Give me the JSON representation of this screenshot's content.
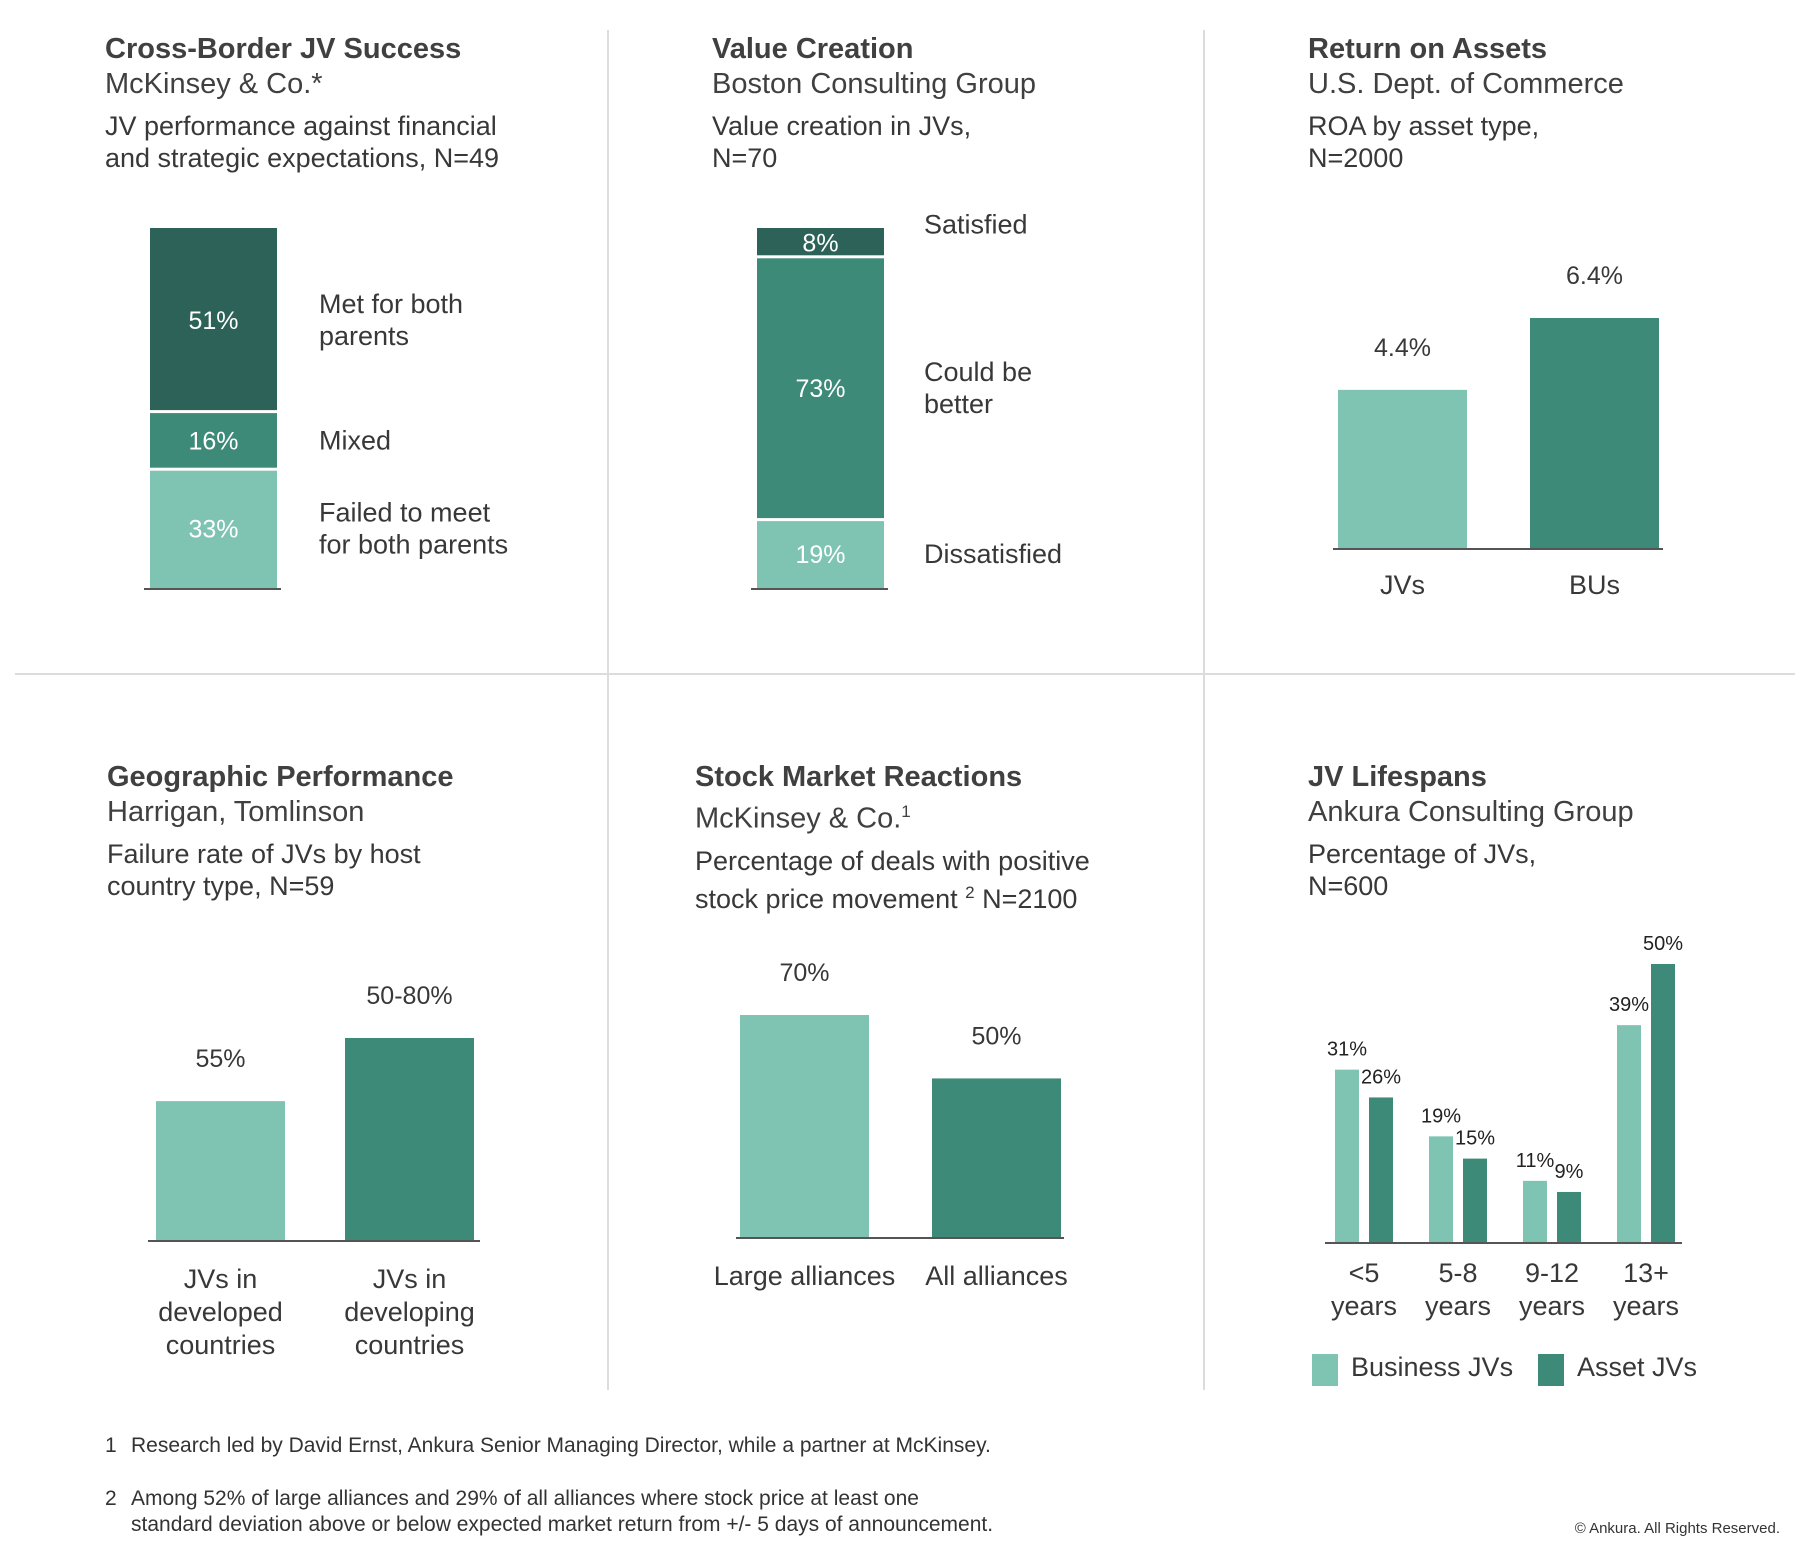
{
  "colors": {
    "light": "#7fc4b3",
    "mid": "#3d8a78",
    "dark": "#2c6257",
    "axis": "#555555"
  },
  "panels": {
    "cross_border": {
      "title": "Cross-Border JV Success",
      "source": "McKinsey & Co.*",
      "desc_lines": [
        "JV performance against financial",
        "and strategic expectations, N=49"
      ]
    },
    "value_creation": {
      "title": "Value Creation",
      "source": "Boston Consulting Group",
      "desc_lines": [
        "Value creation in JVs,",
        "N=70"
      ]
    },
    "roa": {
      "title": "Return on Assets",
      "source": "U.S. Dept. of Commerce",
      "desc_lines": [
        "ROA by asset type,",
        "N=2000"
      ]
    },
    "geographic": {
      "title": "Geographic Performance",
      "source": "Harrigan, Tomlinson",
      "desc_lines": [
        "Failure rate of JVs by host",
        "country type, N=59"
      ]
    },
    "stock_market": {
      "title": "Stock Market Reactions",
      "source": "McKinsey & Co.",
      "source_sup": "1",
      "desc_line1": "Percentage of deals with positive",
      "desc_line2_a": "stock price movement ",
      "desc_line2_sup": "2",
      "desc_line2_b": " N=2100"
    },
    "lifespans": {
      "title": "JV Lifespans",
      "source": "Ankura Consulting Group",
      "desc_lines": [
        "Percentage of JVs,",
        "N=600"
      ]
    }
  },
  "chart_data": [
    {
      "id": "cross_border",
      "type": "bar",
      "stacked": true,
      "segments": [
        {
          "value": 33,
          "label": "33%",
          "category_lines": [
            "Failed to meet",
            "for both parents"
          ],
          "color": "#7fc4b3"
        },
        {
          "value": 16,
          "label": "16%",
          "category_lines": [
            "Mixed"
          ],
          "color": "#3d8a78"
        },
        {
          "value": 51,
          "label": "51%",
          "category_lines": [
            "Met for both",
            "parents"
          ],
          "color": "#2c6257"
        }
      ]
    },
    {
      "id": "value_creation",
      "type": "bar",
      "stacked": true,
      "segments": [
        {
          "value": 19,
          "label": "19%",
          "category_lines": [
            "Dissatisfied"
          ],
          "color": "#7fc4b3"
        },
        {
          "value": 73,
          "label": "73%",
          "category_lines": [
            "Could be",
            "better"
          ],
          "color": "#3d8a78"
        },
        {
          "value": 8,
          "label": "8%",
          "category_lines": [
            "Satisfied"
          ],
          "color": "#2c6257"
        }
      ]
    },
    {
      "id": "roa",
      "type": "bar",
      "ylim": [
        0,
        6.4
      ],
      "bars": [
        {
          "value": 4.4,
          "label": "4.4%",
          "category_lines": [
            "JVs"
          ],
          "color": "#7fc4b3"
        },
        {
          "value": 6.4,
          "label": "6.4%",
          "category_lines": [
            "BUs"
          ],
          "color": "#3d8a78"
        }
      ]
    },
    {
      "id": "geographic",
      "type": "bar",
      "ylim": [
        0,
        80
      ],
      "bars": [
        {
          "value": 55,
          "label": "55%",
          "category_lines": [
            "JVs in",
            "developed",
            "countries"
          ],
          "color": "#7fc4b3"
        },
        {
          "value": 80,
          "label": "50-80%",
          "category_lines": [
            "JVs in",
            "developing",
            "countries"
          ],
          "color": "#3d8a78"
        }
      ]
    },
    {
      "id": "stock_market",
      "type": "bar",
      "ylim": [
        0,
        70
      ],
      "bars": [
        {
          "value": 70,
          "label": "70%",
          "category_lines": [
            "Large alliances"
          ],
          "color": "#7fc4b3"
        },
        {
          "value": 50,
          "label": "50%",
          "category_lines": [
            "All alliances"
          ],
          "color": "#3d8a78"
        }
      ]
    },
    {
      "id": "lifespans",
      "type": "bar",
      "ylim": [
        0,
        50
      ],
      "categories": [
        [
          "<5",
          "years"
        ],
        [
          "5-8",
          "years"
        ],
        [
          "9-12",
          "years"
        ],
        [
          "13+",
          "years"
        ]
      ],
      "series": [
        {
          "name": "Business JVs",
          "values": [
            31,
            19,
            11,
            39
          ],
          "color": "#7fc4b3"
        },
        {
          "name": "Asset JVs",
          "values": [
            26,
            15,
            9,
            50
          ],
          "color": "#3d8a78"
        }
      ],
      "legend": "bottom"
    }
  ],
  "footnotes": [
    {
      "num": "1",
      "lines": [
        "Research led by David Ernst, Ankura Senior Managing Director, while a partner at McKinsey."
      ]
    },
    {
      "num": "2",
      "lines": [
        "Among 52% of large alliances and 29% of all alliances where stock price at least one",
        "standard deviation above or below expected market return from +/- 5 days of announcement."
      ]
    }
  ],
  "copyright": "© Ankura. All Rights Reserved."
}
